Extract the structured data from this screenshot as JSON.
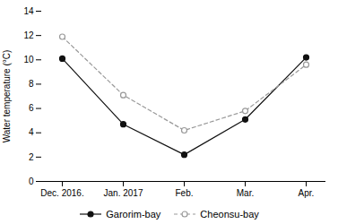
{
  "chart_data": {
    "type": "line",
    "categories": [
      "Dec. 2016.",
      "Jan. 2017",
      "Feb.",
      "Mar.",
      "Apr."
    ],
    "series": [
      {
        "name": "Garorim-bay",
        "color": "#111111",
        "values": [
          10.1,
          4.7,
          2.2,
          5.1,
          10.2
        ],
        "line_style": "solid",
        "marker": "circle"
      },
      {
        "name": "Cheonsu-bay",
        "color": "#999999",
        "values": [
          11.9,
          7.1,
          4.2,
          5.8,
          9.6
        ],
        "line_style": "dashed",
        "marker": "open_circle"
      }
    ],
    "ylabel": "Water temperature (°C)",
    "ylim": [
      0,
      14
    ],
    "yticks": [
      0,
      2,
      4,
      6,
      8,
      10,
      12,
      14
    ],
    "grid": false,
    "legend": "bottom"
  }
}
